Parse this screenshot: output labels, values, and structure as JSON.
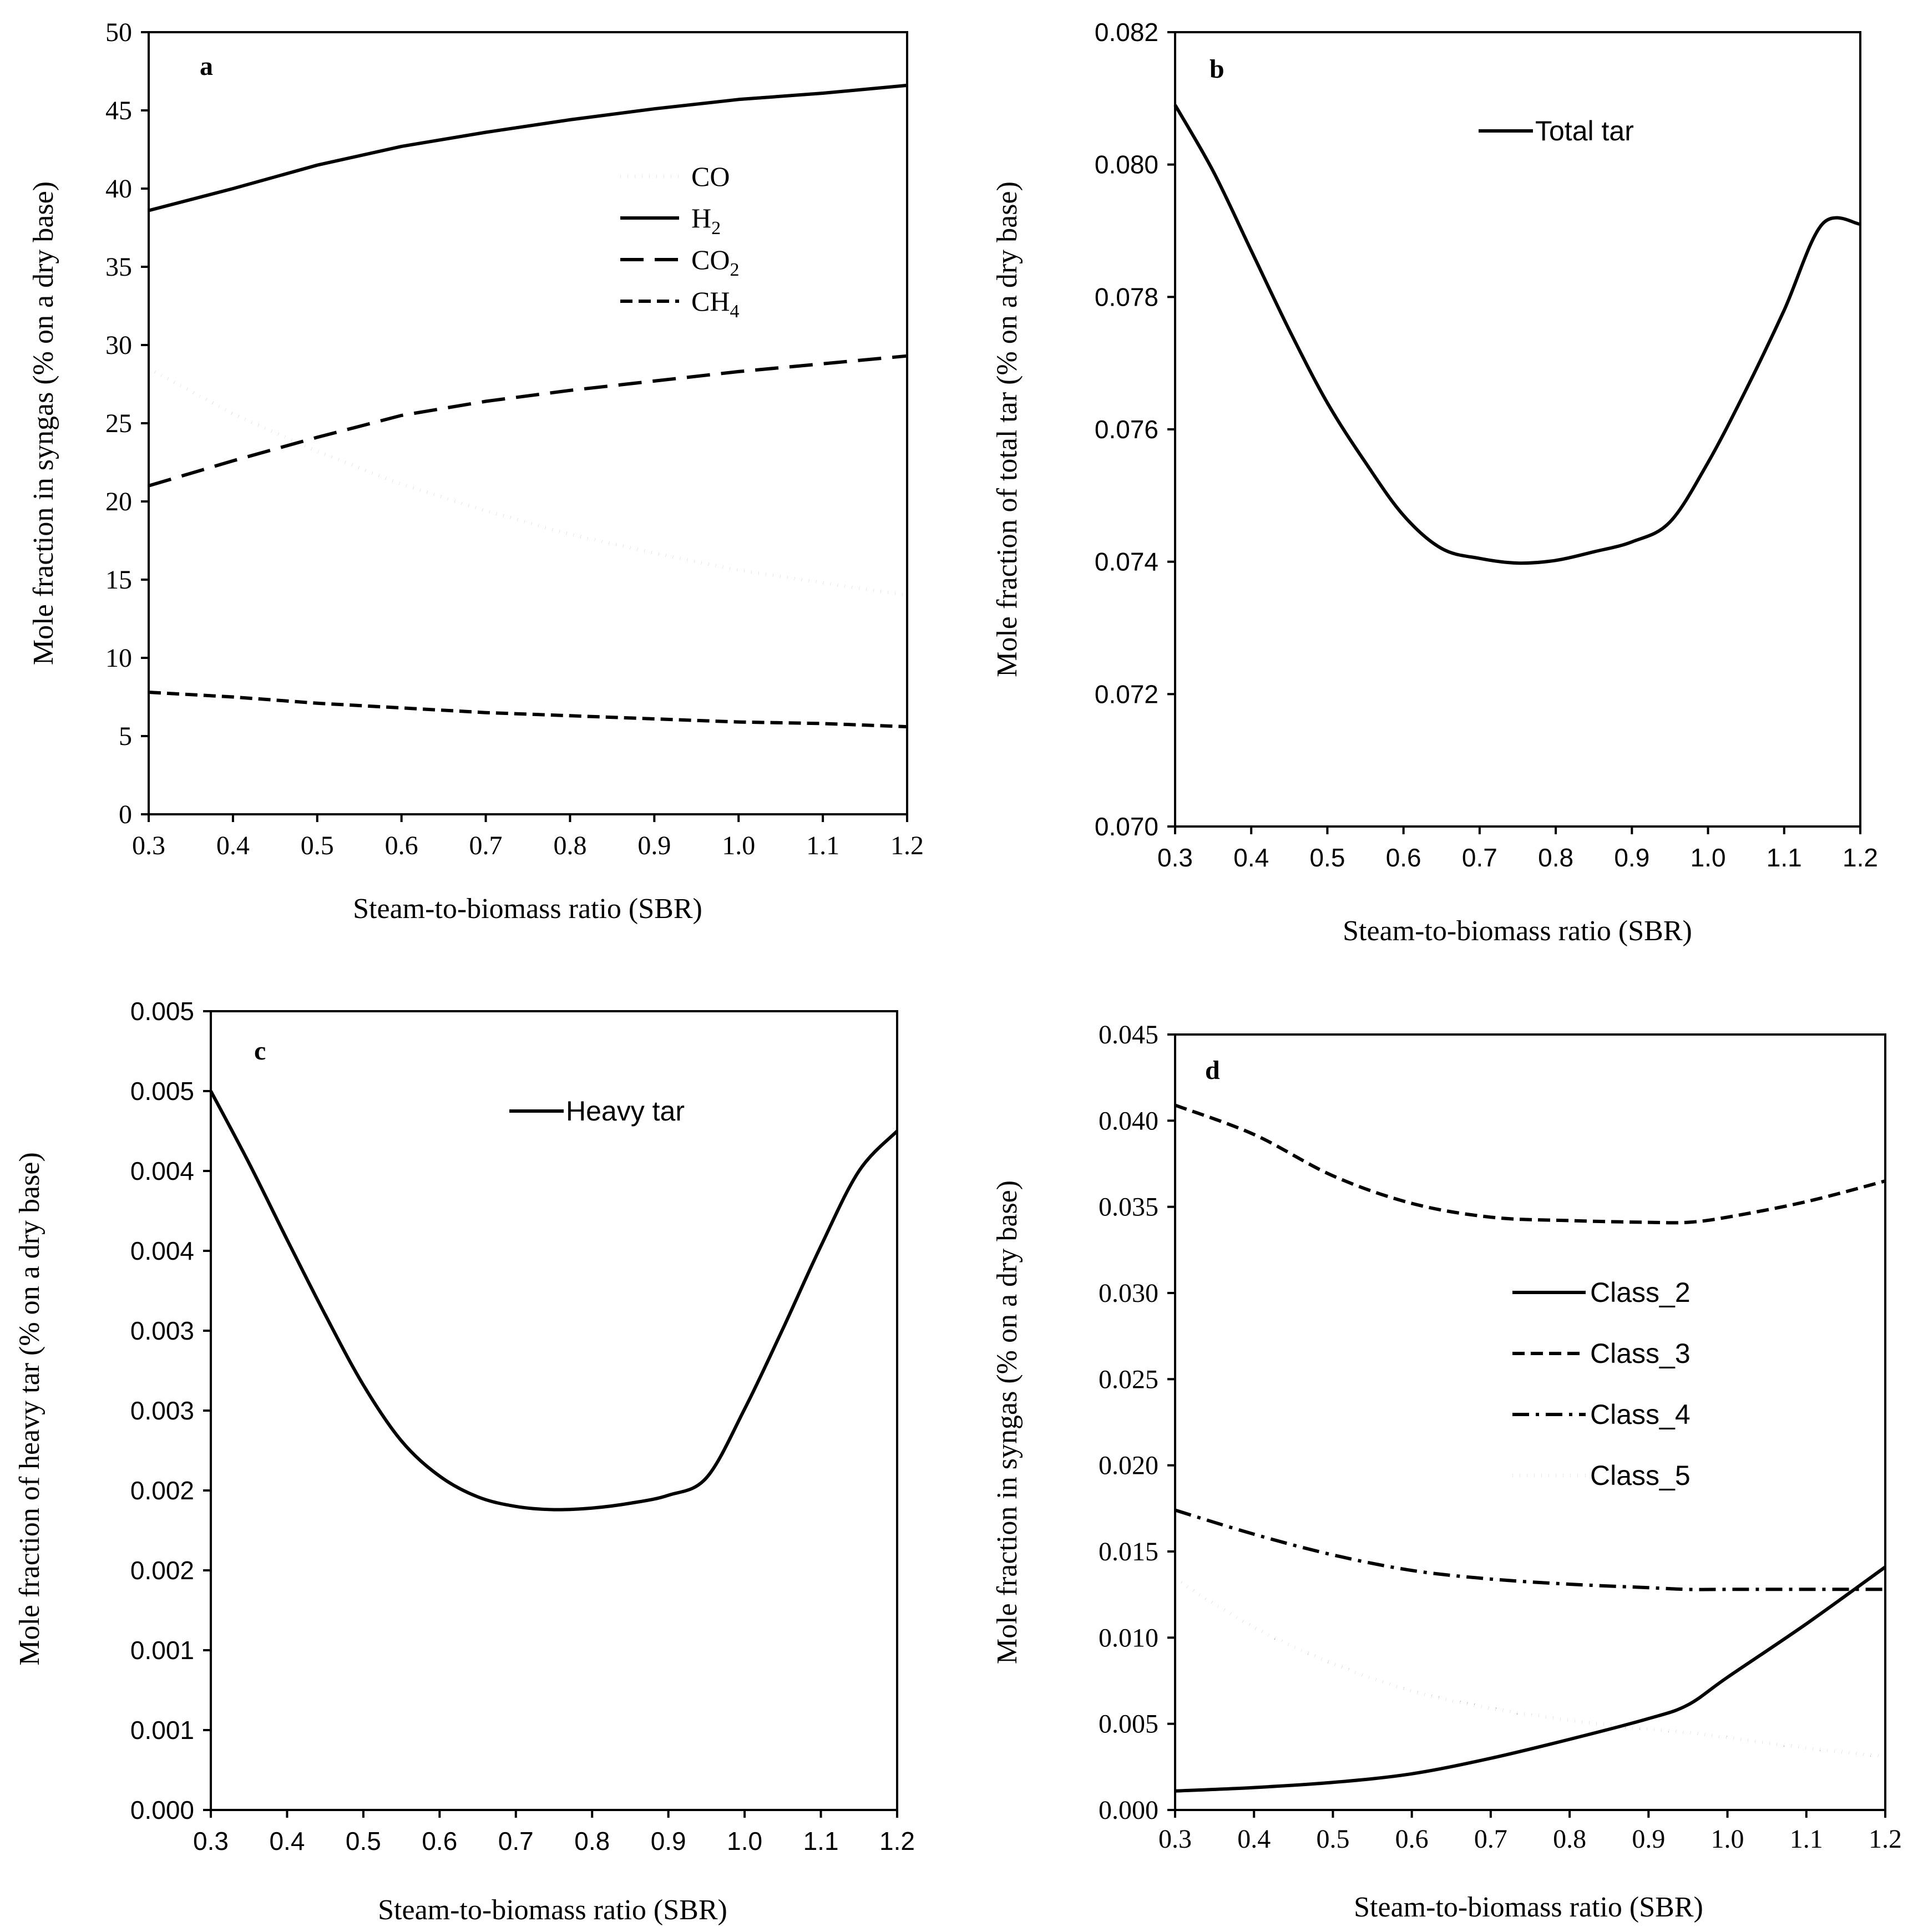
{
  "chart_data": [
    {
      "type": "line",
      "panel": "a",
      "xlabel": "Steam-to-biomass ratio (SBR)",
      "ylabel": "Mole fraction in syngas (% on a dry base)",
      "xlim": [
        0.3,
        1.2
      ],
      "ylim": [
        0,
        50
      ],
      "x_ticks": [
        "0.3",
        "0.4",
        "0.5",
        "0.6",
        "0.7",
        "0.8",
        "0.9",
        "1.0",
        "1.1",
        "1.2"
      ],
      "y_ticks": [
        "0",
        "5",
        "10",
        "15",
        "20",
        "25",
        "30",
        "35",
        "40",
        "45",
        "50"
      ],
      "legend_position": "upper-center",
      "x": [
        0.3,
        0.4,
        0.5,
        0.6,
        0.7,
        0.8,
        0.9,
        1.0,
        1.1,
        1.2
      ],
      "series": [
        {
          "name": "CO",
          "base": "CO",
          "sub": "",
          "style": "dotted",
          "values": [
            28.5,
            25.6,
            23.2,
            21.1,
            19.4,
            17.9,
            16.7,
            15.6,
            14.8,
            14.0
          ]
        },
        {
          "name": "H2",
          "base": "H",
          "sub": "2",
          "style": "solid",
          "values": [
            38.6,
            40.0,
            41.5,
            42.7,
            43.6,
            44.4,
            45.1,
            45.7,
            46.1,
            46.6
          ]
        },
        {
          "name": "CO2",
          "base": "CO",
          "sub": "2",
          "style": "long-dash",
          "values": [
            21.0,
            22.6,
            24.1,
            25.5,
            26.4,
            27.1,
            27.7,
            28.3,
            28.8,
            29.3
          ]
        },
        {
          "name": "CH4",
          "base": "CH",
          "sub": "4",
          "style": "short-dash",
          "values": [
            7.8,
            7.5,
            7.1,
            6.8,
            6.5,
            6.3,
            6.1,
            5.9,
            5.8,
            5.6
          ]
        }
      ]
    },
    {
      "type": "line",
      "panel": "b",
      "xlabel": "Steam-to-biomass ratio (SBR)",
      "ylabel": "Mole fraction of total tar (% on a dry base)",
      "xlim": [
        0.3,
        1.2
      ],
      "ylim": [
        0.07,
        0.082
      ],
      "x_ticks": [
        "0.3",
        "0.4",
        "0.5",
        "0.6",
        "0.7",
        "0.8",
        "0.9",
        "1.0",
        "1.1",
        "1.2"
      ],
      "y_ticks": [
        "0.070",
        "0.072",
        "0.074",
        "0.076",
        "0.078",
        "0.080",
        "0.082"
      ],
      "legend_position": "top-center",
      "x": [
        0.3,
        0.35,
        0.4,
        0.45,
        0.5,
        0.55,
        0.6,
        0.65,
        0.7,
        0.75,
        0.8,
        0.85,
        0.9,
        0.95,
        1.0,
        1.05,
        1.1,
        1.15,
        1.2
      ],
      "series": [
        {
          "name": "Total tar",
          "style": "solid",
          "values": [
            0.0809,
            0.0799,
            0.0787,
            0.0775,
            0.0764,
            0.0755,
            0.0747,
            0.0742,
            0.07405,
            0.07398,
            0.07402,
            0.07415,
            0.0743,
            0.0746,
            0.0755,
            0.0766,
            0.0778,
            0.0791,
            0.0791
          ]
        }
      ]
    },
    {
      "type": "line",
      "panel": "c",
      "xlabel": "Steam-to-biomass ratio (SBR)",
      "ylabel": "Mole fraction of heavy tar (% on a dry base)",
      "xlim": [
        0.3,
        1.2
      ],
      "ylim": [
        0,
        0.005
      ],
      "x_ticks": [
        "0.3",
        "0.4",
        "0.5",
        "0.6",
        "0.7",
        "0.8",
        "0.9",
        "1.0",
        "1.1",
        "1.2"
      ],
      "y_ticks": [
        "0.000",
        "0.001",
        "0.001",
        "0.002",
        "0.002",
        "0.003",
        "0.003",
        "0.004",
        "0.004",
        "0.005",
        "0.005"
      ],
      "legend_position": "top-center",
      "x": [
        0.3,
        0.35,
        0.4,
        0.45,
        0.5,
        0.55,
        0.6,
        0.65,
        0.7,
        0.75,
        0.8,
        0.85,
        0.9,
        0.95,
        1.0,
        1.05,
        1.1,
        1.15,
        1.2
      ],
      "series": [
        {
          "name": "Heavy tar",
          "style": "solid",
          "values": [
            0.0045,
            0.00405,
            0.00357,
            0.0031,
            0.00266,
            0.00231,
            0.00209,
            0.00196,
            0.0019,
            0.00188,
            0.00189,
            0.00192,
            0.00197,
            0.00208,
            0.00251,
            0.00301,
            0.00353,
            0.004,
            0.00425
          ]
        }
      ]
    },
    {
      "type": "line",
      "panel": "d",
      "xlabel": "Steam-to-biomass ratio (SBR)",
      "ylabel": "Mole fraction in syngas (% on a dry base)",
      "xlim": [
        0.3,
        1.2
      ],
      "ylim": [
        0,
        0.045
      ],
      "x_ticks": [
        "0.3",
        "0.4",
        "0.5",
        "0.6",
        "0.7",
        "0.8",
        "0.9",
        "1.0",
        "1.1",
        "1.2"
      ],
      "y_ticks": [
        "0.000",
        "0.005",
        "0.010",
        "0.015",
        "0.020",
        "0.025",
        "0.030",
        "0.035",
        "0.040",
        "0.045"
      ],
      "legend_position": "center-right",
      "x": [
        0.3,
        0.4,
        0.5,
        0.6,
        0.7,
        0.8,
        0.9,
        0.95,
        1.0,
        1.1,
        1.2
      ],
      "series": [
        {
          "name": "Class_2",
          "style": "solid",
          "values": [
            0.0011,
            0.0013,
            0.0016,
            0.0021,
            0.003,
            0.0041,
            0.0053,
            0.0061,
            0.0077,
            0.0108,
            0.0141
          ]
        },
        {
          "name": "Class_3",
          "style": "dashed",
          "values": [
            0.0409,
            0.0392,
            0.0368,
            0.0352,
            0.0344,
            0.0342,
            0.0341,
            0.0341,
            0.0344,
            0.0353,
            0.0365
          ]
        },
        {
          "name": "Class_4",
          "style": "dash-dot",
          "values": [
            0.0174,
            0.016,
            0.0148,
            0.0139,
            0.0134,
            0.0131,
            0.0129,
            0.0128,
            0.0128,
            0.0128,
            0.0128
          ]
        },
        {
          "name": "Class_5",
          "style": "dotted",
          "values": [
            0.0134,
            0.0106,
            0.0085,
            0.0069,
            0.0059,
            0.0052,
            0.0047,
            0.0045,
            0.0042,
            0.0036,
            0.0031
          ]
        }
      ]
    }
  ]
}
